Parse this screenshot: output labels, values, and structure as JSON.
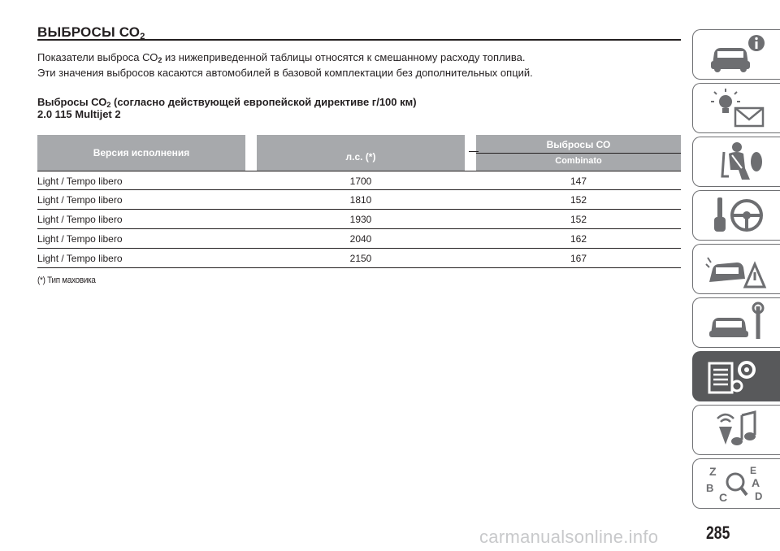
{
  "section": {
    "title": "ВЫБРОСЫ СО",
    "title_sub": "2",
    "intro_line1_a": "Показатели выброса СО",
    "intro_line1_sub": "2",
    "intro_line1_b": " из нижеприведенной таблицы относятся к смешанному расходу топлива.",
    "intro_line2": "Эти значения выбросов касаются автомобилей в базовой комплектации без дополнительных опций.",
    "subheading_a": "Выбросы СО",
    "subheading_sub": "2",
    "subheading_b": " (согласно действующей европейской директиве г/100 км)",
    "subheading_line2": "2.0 115 Multijet 2"
  },
  "table": {
    "headers": {
      "version": "Версия исполнения",
      "hp": "л.с. (*)",
      "emissions": "Выбросы СО",
      "emissions_sub": "Combinato"
    },
    "rows": [
      {
        "version": "Light / Tempo libero",
        "hp": "1700",
        "emissions": "147"
      },
      {
        "version": "Light / Tempo libero",
        "hp": "1810",
        "emissions": "152"
      },
      {
        "version": "Light / Tempo libero",
        "hp": "1930",
        "emissions": "152"
      },
      {
        "version": "Light / Tempo libero",
        "hp": "2040",
        "emissions": "162"
      },
      {
        "version": "Light / Tempo libero",
        "hp": "2150",
        "emissions": "167"
      }
    ],
    "footnote": "(*) Тип маховика"
  },
  "sidebar": {
    "tabs": [
      {
        "icon": "car-info-icon",
        "active": false
      },
      {
        "icon": "warning-lights-icon",
        "active": false
      },
      {
        "icon": "safety-seat-icon",
        "active": false
      },
      {
        "icon": "key-steering-wheel-icon",
        "active": false
      },
      {
        "icon": "car-emergency-icon",
        "active": false
      },
      {
        "icon": "car-maintenance-icon",
        "active": false
      },
      {
        "icon": "technical-data-icon",
        "active": true
      },
      {
        "icon": "multimedia-icon",
        "active": false
      },
      {
        "icon": "alphabetical-index-icon",
        "active": false
      }
    ],
    "colors": {
      "border": "#6d6e71",
      "active_bg": "#58595b",
      "icon": "#6d6e71"
    }
  },
  "page": {
    "number": "285",
    "watermark": "carmanualsonline.info"
  }
}
